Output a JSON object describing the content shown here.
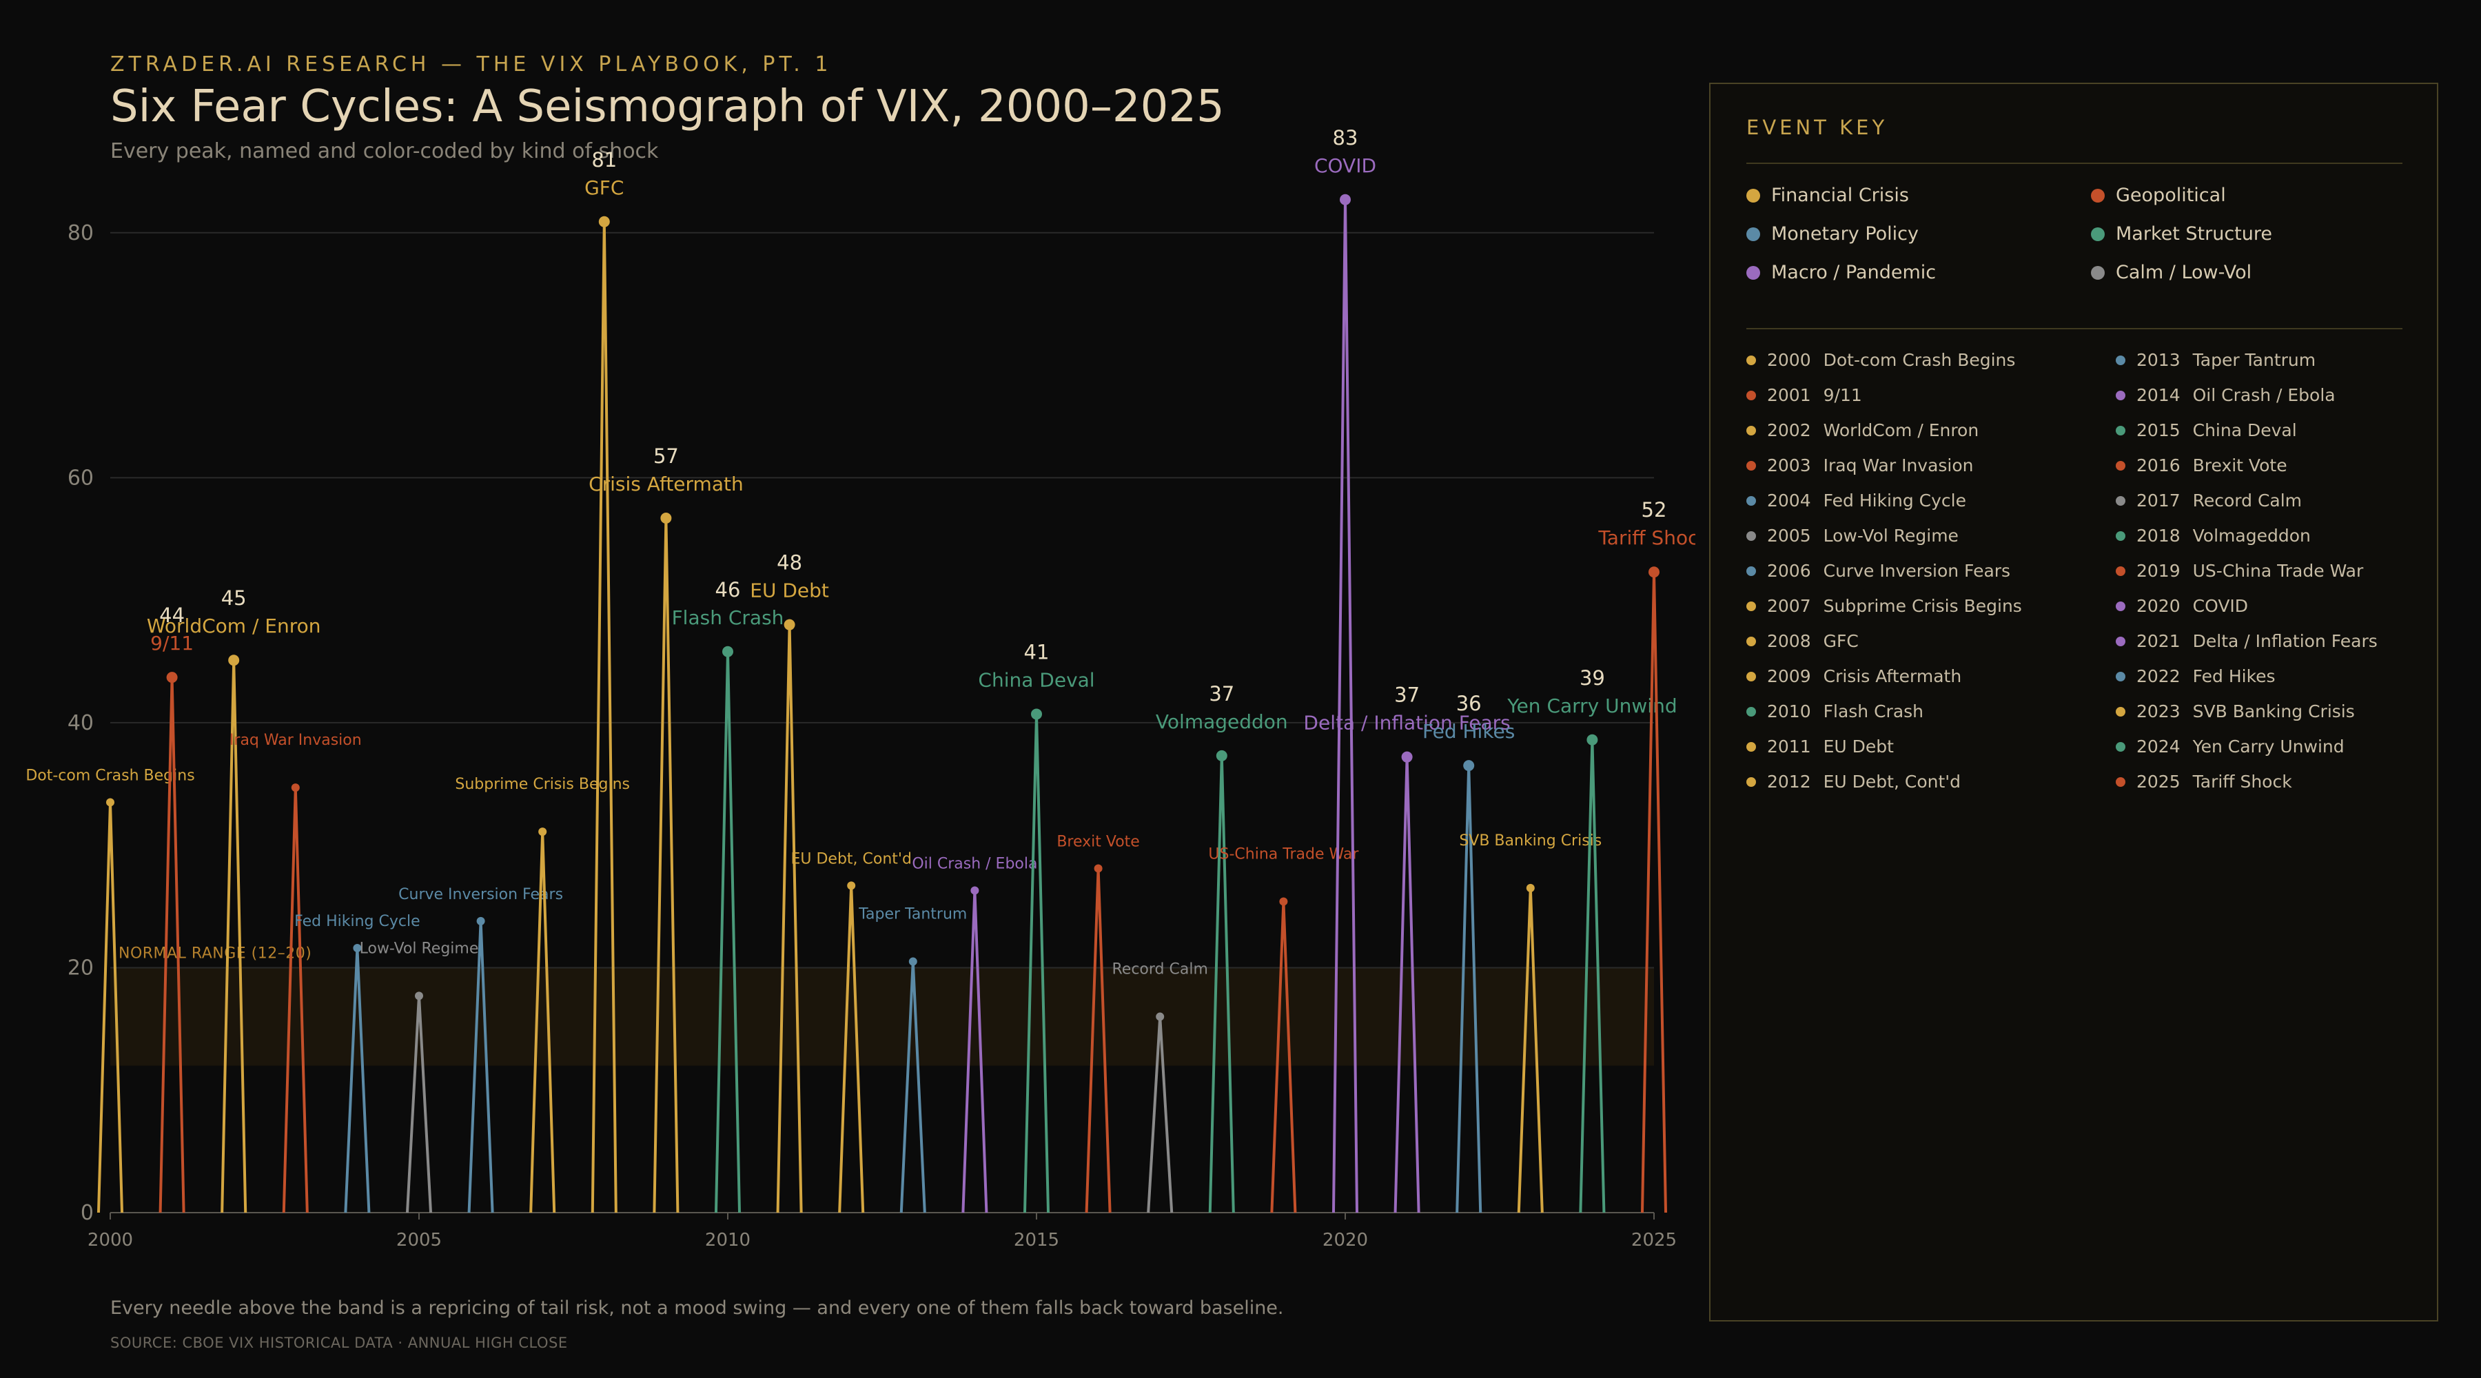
{
  "header": {
    "eyebrow": "ZTRADER.AI RESEARCH — THE VIX PLAYBOOK, PT. 1",
    "title": "Six Fear Cycles: A Seismograph of VIX, 2000–2025",
    "subtitle": "Every peak, named and color-coded by kind of shock"
  },
  "footer": {
    "note": "Every needle above the band is a repricing of tail risk, not a mood swing — and every one of them falls back toward baseline.",
    "source": "SOURCE: CBOE VIX HISTORICAL DATA · ANNUAL HIGH CLOSE"
  },
  "categories": [
    {
      "name": "Financial Crisis",
      "color": "#d4a640"
    },
    {
      "name": "Geopolitical",
      "color": "#c4502a"
    },
    {
      "name": "Monetary Policy",
      "color": "#5b8aa6"
    },
    {
      "name": "Market Structure",
      "color": "#4a9a7a"
    },
    {
      "name": "Macro / Pandemic",
      "color": "#9b6bbf"
    },
    {
      "name": "Calm / Low-Vol",
      "color": "#8a8a8a"
    }
  ],
  "key": {
    "title": "EVENT KEY",
    "events": [
      {
        "year": "2000",
        "label": "Dot-com Crash Begins",
        "cat": 0
      },
      {
        "year": "2001",
        "label": "9/11",
        "cat": 1
      },
      {
        "year": "2002",
        "label": "WorldCom / Enron",
        "cat": 0
      },
      {
        "year": "2003",
        "label": "Iraq War Invasion",
        "cat": 1
      },
      {
        "year": "2004",
        "label": "Fed Hiking Cycle",
        "cat": 2
      },
      {
        "year": "2005",
        "label": "Low-Vol Regime",
        "cat": 5
      },
      {
        "year": "2006",
        "label": "Curve Inversion Fears",
        "cat": 2
      },
      {
        "year": "2007",
        "label": "Subprime Crisis Begins",
        "cat": 0
      },
      {
        "year": "2008",
        "label": "GFC",
        "cat": 0
      },
      {
        "year": "2009",
        "label": "Crisis Aftermath",
        "cat": 0
      },
      {
        "year": "2010",
        "label": "Flash Crash",
        "cat": 3
      },
      {
        "year": "2011",
        "label": "EU Debt",
        "cat": 0
      },
      {
        "year": "2012",
        "label": "EU Debt, Cont'd",
        "cat": 0
      },
      {
        "year": "2013",
        "label": "Taper Tantrum",
        "cat": 2
      },
      {
        "year": "2014",
        "label": "Oil Crash / Ebola",
        "cat": 4
      },
      {
        "year": "2015",
        "label": "China Deval",
        "cat": 3
      },
      {
        "year": "2016",
        "label": "Brexit Vote",
        "cat": 1
      },
      {
        "year": "2017",
        "label": "Record Calm",
        "cat": 5
      },
      {
        "year": "2018",
        "label": "Volmageddon",
        "cat": 3
      },
      {
        "year": "2019",
        "label": "US-China Trade War",
        "cat": 1
      },
      {
        "year": "2020",
        "label": "COVID",
        "cat": 4
      },
      {
        "year": "2021",
        "label": "Delta / Inflation Fears",
        "cat": 4
      },
      {
        "year": "2022",
        "label": "Fed Hikes",
        "cat": 2
      },
      {
        "year": "2023",
        "label": "SVB Banking Crisis",
        "cat": 0
      },
      {
        "year": "2024",
        "label": "Yen Carry Unwind",
        "cat": 3
      },
      {
        "year": "2025",
        "label": "Tariff Shock",
        "cat": 1
      }
    ]
  },
  "chart_data": {
    "type": "line",
    "title": "Six Fear Cycles: A Seismograph of VIX, 2000–2025",
    "xlabel": "",
    "ylabel": "",
    "xlim": [
      2000,
      2025
    ],
    "ylim": [
      0,
      90
    ],
    "x_ticks": [
      2000,
      2005,
      2010,
      2015,
      2020,
      2025
    ],
    "y_ticks": [
      0,
      20,
      40,
      60,
      80
    ],
    "grid": true,
    "band": {
      "label": "NORMAL RANGE (12–20)",
      "low": 12,
      "high": 20
    },
    "peaks": [
      {
        "year": 2000,
        "value": 33.5,
        "label": "Dot-com Crash Begins",
        "cat": 0,
        "major": false
      },
      {
        "year": 2001,
        "value": 43.7,
        "label": "9/11",
        "cat": 1,
        "major": true,
        "value_label": "44"
      },
      {
        "year": 2002,
        "value": 45.1,
        "label": "WorldCom / Enron",
        "cat": 0,
        "major": true,
        "value_label": "45"
      },
      {
        "year": 2003,
        "value": 34.7,
        "label": "Iraq War Invasion",
        "cat": 1,
        "major": false
      },
      {
        "year": 2004,
        "value": 21.6,
        "label": "Fed Hiking Cycle",
        "cat": 2,
        "major": false
      },
      {
        "year": 2005,
        "value": 17.7,
        "label": "Low-Vol Regime",
        "cat": 5,
        "major": false
      },
      {
        "year": 2006,
        "value": 23.8,
        "label": "Curve Inversion Fears",
        "cat": 2,
        "major": false
      },
      {
        "year": 2007,
        "value": 31.1,
        "label": "Subprime Crisis Begins",
        "cat": 0,
        "major": false
      },
      {
        "year": 2008,
        "value": 80.9,
        "label": "GFC",
        "cat": 0,
        "major": true,
        "value_label": "81"
      },
      {
        "year": 2009,
        "value": 56.7,
        "label": "Crisis Aftermath",
        "cat": 0,
        "major": true,
        "value_label": "57"
      },
      {
        "year": 2010,
        "value": 45.8,
        "label": "Flash Crash",
        "cat": 3,
        "major": true,
        "value_label": "46"
      },
      {
        "year": 2011,
        "value": 48.0,
        "label": "EU Debt",
        "cat": 0,
        "major": true,
        "value_label": "48"
      },
      {
        "year": 2012,
        "value": 26.7,
        "label": "EU Debt, Cont'd",
        "cat": 0,
        "major": false
      },
      {
        "year": 2013,
        "value": 20.5,
        "label": "Taper Tantrum",
        "cat": 2,
        "major": false
      },
      {
        "year": 2014,
        "value": 26.3,
        "label": "Oil Crash / Ebola",
        "cat": 4,
        "major": false
      },
      {
        "year": 2015,
        "value": 40.7,
        "label": "China Deval",
        "cat": 3,
        "major": true,
        "value_label": "41"
      },
      {
        "year": 2016,
        "value": 28.1,
        "label": "Brexit Vote",
        "cat": 1,
        "major": false
      },
      {
        "year": 2017,
        "value": 16.0,
        "label": "Record Calm",
        "cat": 5,
        "major": false
      },
      {
        "year": 2018,
        "value": 37.3,
        "label": "Volmageddon",
        "cat": 3,
        "major": true,
        "value_label": "37"
      },
      {
        "year": 2019,
        "value": 25.4,
        "label": "US-China Trade War",
        "cat": 1,
        "major": false
      },
      {
        "year": 2020,
        "value": 82.7,
        "label": "COVID",
        "cat": 4,
        "major": true,
        "value_label": "83"
      },
      {
        "year": 2021,
        "value": 37.2,
        "label": "Delta / Inflation Fears",
        "cat": 4,
        "major": true,
        "value_label": "37"
      },
      {
        "year": 2022,
        "value": 36.5,
        "label": "Fed Hikes",
        "cat": 2,
        "major": true,
        "value_label": "36"
      },
      {
        "year": 2023,
        "value": 26.5,
        "label": "SVB Banking Crisis",
        "cat": 0,
        "major": false
      },
      {
        "year": 2024,
        "value": 38.6,
        "label": "Yen Carry Unwind",
        "cat": 3,
        "major": true,
        "value_label": "39"
      },
      {
        "year": 2025,
        "value": 52.3,
        "label": "Tariff Shock",
        "cat": 1,
        "major": true,
        "value_label": "52"
      }
    ]
  }
}
